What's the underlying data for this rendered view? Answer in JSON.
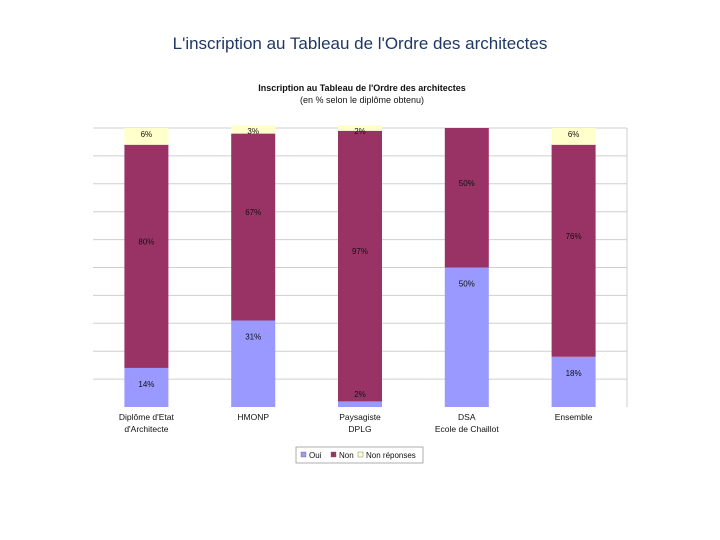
{
  "slide": {
    "title": "L'inscription au Tableau de l'Ordre des architectes"
  },
  "chart_data": {
    "type": "bar",
    "stacked": "percent",
    "title": "Inscription au Tableau de l'Ordre des architectes",
    "subtitle": "(en % selon le diplôme obtenu)",
    "categories": [
      [
        "Diplôme d'Etat",
        "d'Architecte"
      ],
      [
        "HMONP"
      ],
      [
        "Paysagiste",
        "DPLG"
      ],
      [
        "DSA",
        "Ecole de Chaillot"
      ],
      [
        "Ensemble"
      ]
    ],
    "series": [
      {
        "name": "Oui",
        "color": "#9999ff",
        "values": [
          14,
          31,
          2,
          50,
          18
        ],
        "labels": [
          "14%",
          "31%",
          "2%",
          "50%",
          "18%"
        ]
      },
      {
        "name": "Non",
        "color": "#993366",
        "values": [
          80,
          67,
          97,
          50,
          76
        ],
        "labels": [
          "80%",
          "67%",
          "97%",
          "50%",
          "76%"
        ]
      },
      {
        "name": "Non réponses",
        "color": "#ffffcc",
        "values": [
          6,
          3,
          2,
          0,
          6
        ],
        "labels": [
          "6%",
          "3%",
          "2%",
          "",
          "6%"
        ]
      }
    ],
    "ylim": [
      0,
      100
    ],
    "grid": true,
    "legend_position": "bottom"
  }
}
